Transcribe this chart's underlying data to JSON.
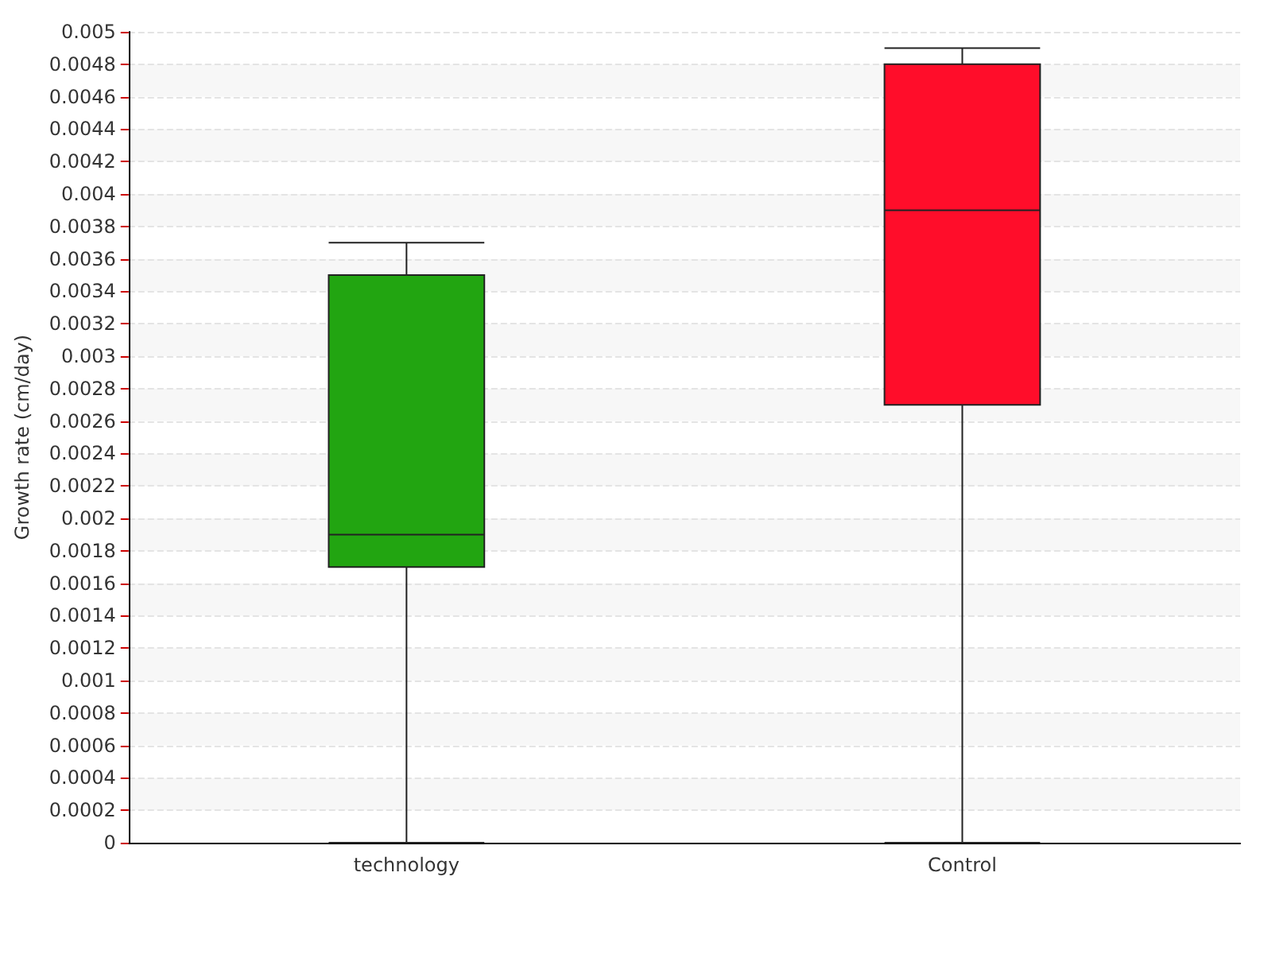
{
  "chart_data": {
    "type": "box",
    "ylabel": "Growth rate (cm/day)",
    "categories": [
      "technology",
      "Control"
    ],
    "boxes": [
      {
        "low": 0,
        "q1": 0.0017,
        "median": 0.0019,
        "q3": 0.0035,
        "high": 0.0037
      },
      {
        "low": 0,
        "q1": 0.0027,
        "median": 0.0039,
        "q3": 0.0048,
        "high": 0.0049
      }
    ],
    "colors": [
      "#22a511",
      "#ff0d2a"
    ],
    "ylim": [
      0,
      0.005
    ],
    "yticks": [
      0,
      0.0002,
      0.0004,
      0.0006,
      0.0008,
      0.001,
      0.0012,
      0.0014,
      0.0016,
      0.0018,
      0.002,
      0.0022,
      0.0024,
      0.0026,
      0.0028,
      0.003,
      0.0032,
      0.0034,
      0.0036,
      0.0038,
      0.004,
      0.0042,
      0.0044,
      0.0046,
      0.0048,
      0.005
    ],
    "grid": "y"
  }
}
